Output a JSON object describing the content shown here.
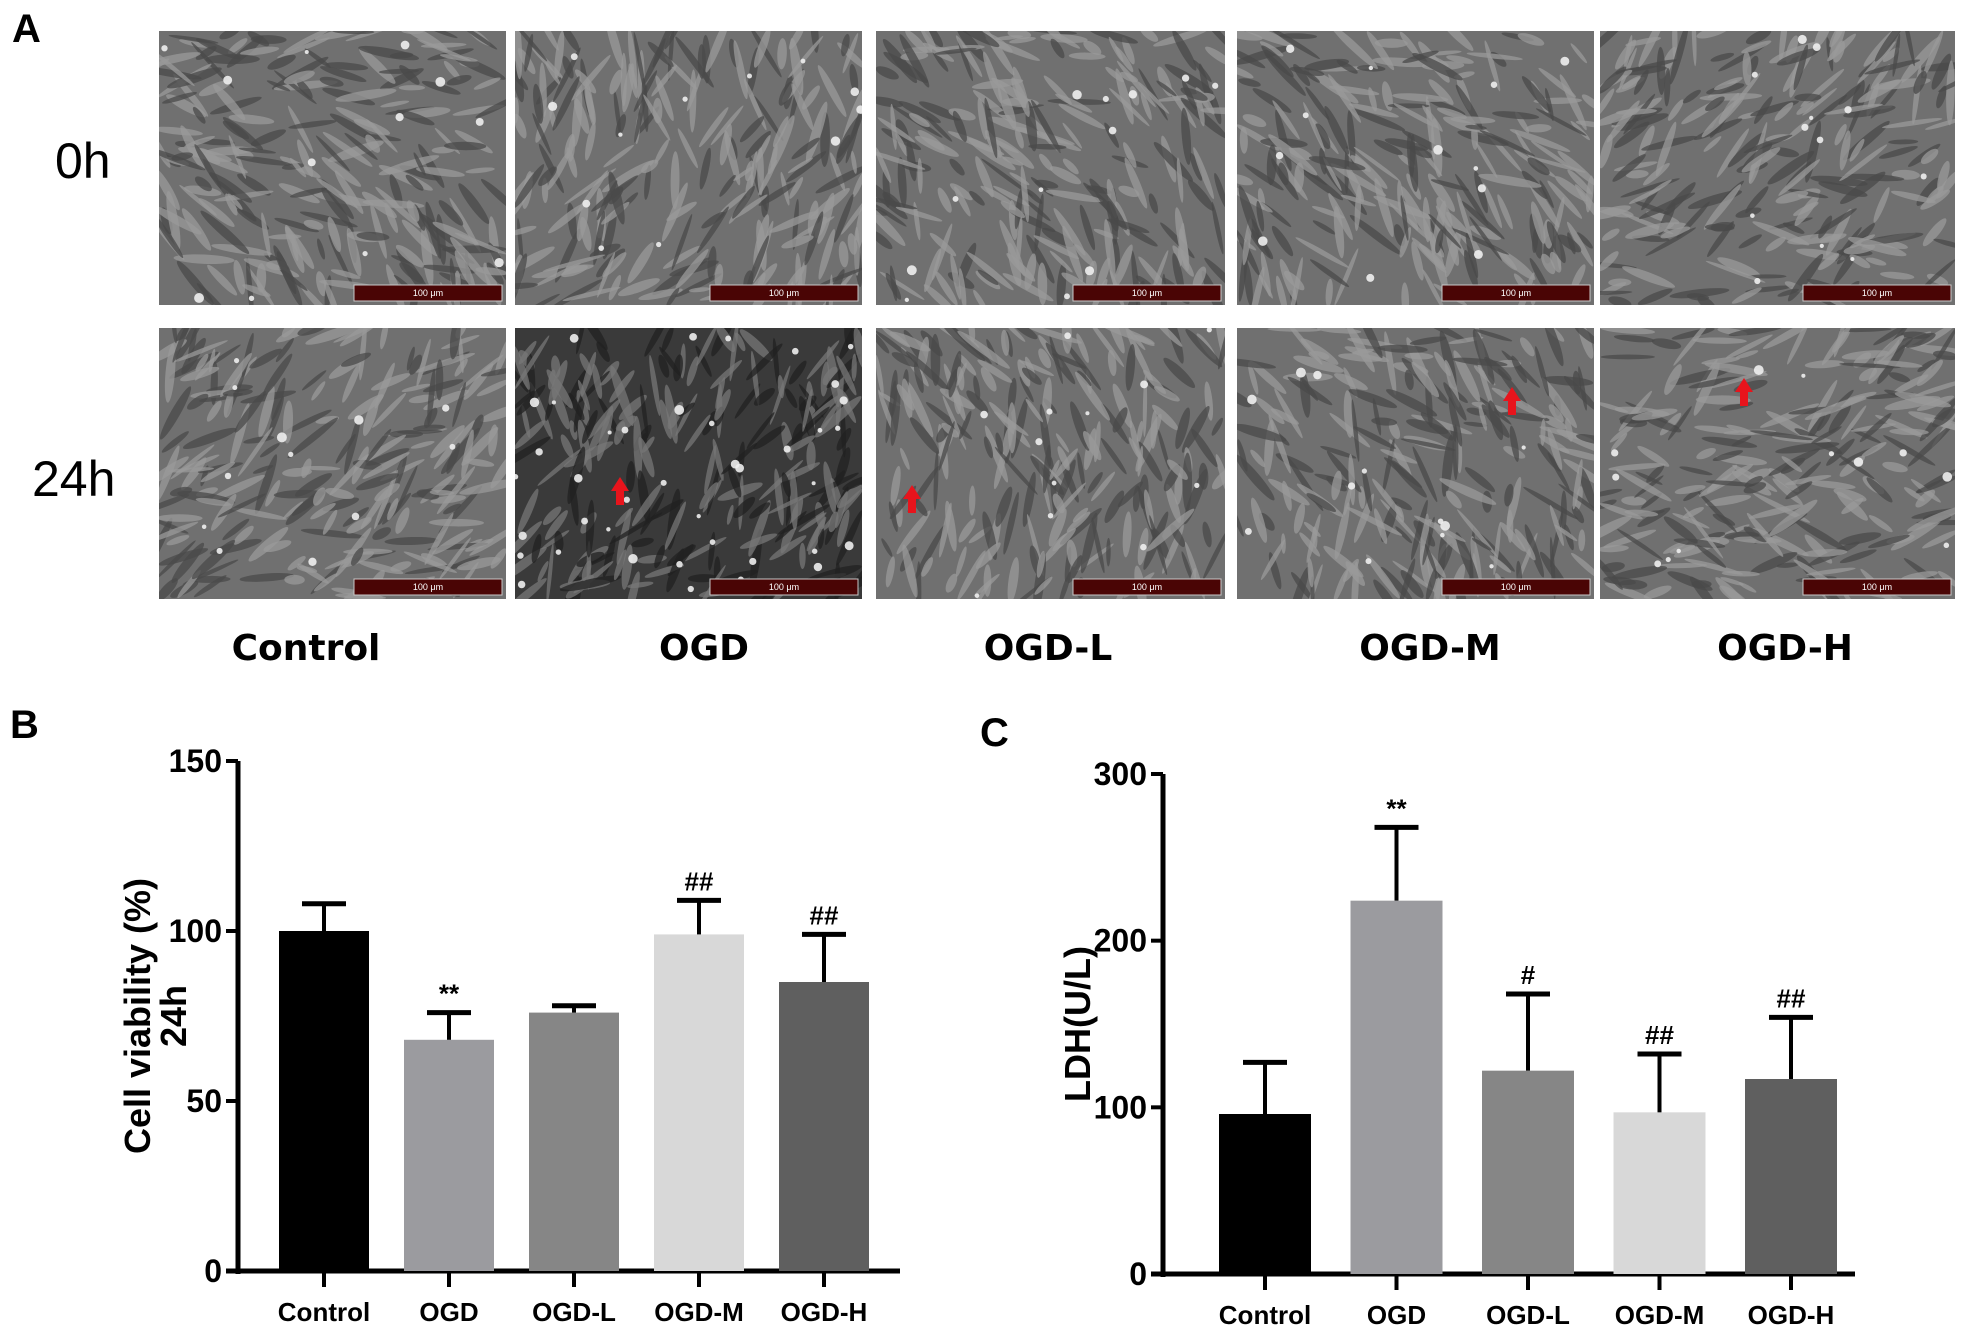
{
  "panel_A": {
    "letter": "A",
    "row_labels": [
      "0h",
      "24h"
    ],
    "column_labels": [
      "Control",
      "OGD",
      "OGD-L",
      "OGD-M",
      "OGD-H"
    ],
    "scale_bar_text": "100 μm",
    "arrow_color": "#e8141c",
    "arrows_in_24h_row": [
      "OGD",
      "OGD-L",
      "OGD-M",
      "OGD-H"
    ]
  },
  "panel_B_letter": "B",
  "panel_C_letter": "C",
  "chart_data": [
    {
      "type": "bar",
      "title": "",
      "xlabel": "",
      "ylabel": "Cell viability (%)",
      "ylabel_line2": "24h",
      "ylim": [
        0,
        150
      ],
      "yticks": [
        "0",
        "50",
        "100",
        "150"
      ],
      "categories": [
        "Control",
        "OGD",
        "OGD-L",
        "OGD-M",
        "OGD-H"
      ],
      "values": [
        100,
        68,
        76,
        99,
        85
      ],
      "error_upper": [
        8,
        8,
        2,
        10,
        14
      ],
      "annotations": [
        "",
        "**",
        "",
        "##",
        "##"
      ],
      "colors": [
        "#000000",
        "#9b9b9f",
        "#868686",
        "#d8d8d8",
        "#5f5f5f"
      ],
      "grid": false
    },
    {
      "type": "bar",
      "title": "",
      "xlabel": "",
      "ylabel": "LDH(U/L)",
      "ylim": [
        0,
        300
      ],
      "yticks": [
        "0",
        "100",
        "200",
        "300"
      ],
      "categories": [
        "Control",
        "OGD",
        "OGD-L",
        "OGD-M",
        "OGD-H"
      ],
      "values": [
        96,
        224,
        122,
        97,
        117
      ],
      "error_upper": [
        31,
        44,
        46,
        35,
        37
      ],
      "annotations": [
        "",
        "**",
        "#",
        "##",
        "##"
      ],
      "colors": [
        "#000000",
        "#9b9b9f",
        "#868686",
        "#d8d8d8",
        "#5f5f5f"
      ],
      "grid": false
    }
  ]
}
